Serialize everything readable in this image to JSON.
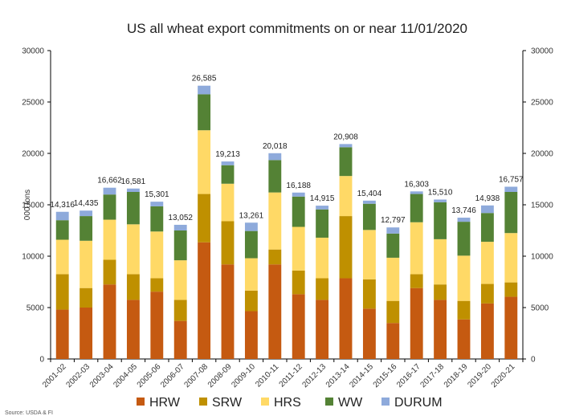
{
  "chart_data": {
    "type": "bar",
    "stacked": true,
    "title": "US all wheat export commitments on or near 11/01/2020",
    "ylabel": "000 tons",
    "xlabel": "",
    "ylim": [
      0,
      30000
    ],
    "yticks": [
      0,
      5000,
      10000,
      15000,
      20000,
      25000,
      30000
    ],
    "secondary_y_axis": true,
    "grid": false,
    "legend_position": "bottom",
    "source": "Source: USDA & FI",
    "categories": [
      "2001-02",
      "2002-03",
      "2003-04",
      "2004-05",
      "2005-06",
      "2006-07",
      "2007-08",
      "2008-09",
      "2009-10",
      "2010-11",
      "2011-12",
      "2012-13",
      "2013-14",
      "2014-15",
      "2015-16",
      "2016-17",
      "2017-18",
      "2018-19",
      "2019-20",
      "2020-21"
    ],
    "totals": [
      14316,
      14435,
      16662,
      16581,
      15301,
      13052,
      26585,
      19213,
      13261,
      20018,
      16188,
      14915,
      20908,
      15404,
      12797,
      16303,
      15510,
      13746,
      14938,
      16757
    ],
    "total_labels": [
      "14,316",
      "14,435",
      "16,662",
      "16,581",
      "15,301",
      "13,052",
      "26,585",
      "19,213",
      "13,261",
      "20,018",
      "16,188",
      "14,915",
      "20,908",
      "15,404",
      "12,797",
      "16,303",
      "15,510",
      "13,746",
      "14,938",
      "16,757"
    ],
    "series": [
      {
        "name": "HRW",
        "color": "#c55a11",
        "values": [
          4800,
          5000,
          7250,
          5750,
          6550,
          3700,
          11350,
          9200,
          4650,
          9200,
          6300,
          5750,
          7850,
          4900,
          3500,
          6900,
          5750,
          3850,
          5400,
          6050
        ]
      },
      {
        "name": "SRW",
        "color": "#bf9000",
        "values": [
          3450,
          1900,
          2400,
          2500,
          1300,
          2050,
          4700,
          4200,
          2000,
          1450,
          2300,
          2100,
          6050,
          2850,
          2150,
          1350,
          1500,
          1800,
          1900,
          1400
        ]
      },
      {
        "name": "HRS",
        "color": "#ffd966",
        "values": [
          3350,
          4600,
          3900,
          4850,
          4550,
          3850,
          6200,
          3650,
          3150,
          5550,
          4250,
          3950,
          3900,
          4800,
          4200,
          5050,
          4400,
          4400,
          4100,
          4800
        ]
      },
      {
        "name": "WW",
        "color": "#548235",
        "values": [
          1900,
          2400,
          2450,
          3150,
          2450,
          2900,
          3500,
          1800,
          2650,
          3150,
          2950,
          2750,
          2800,
          2550,
          2350,
          2750,
          3600,
          3300,
          2800,
          4000
        ]
      },
      {
        "name": "DURUM",
        "color": "#8eaadb",
        "values": [
          816,
          535,
          662,
          331,
          451,
          552,
          835,
          363,
          811,
          668,
          388,
          365,
          308,
          304,
          597,
          253,
          260,
          396,
          738,
          507
        ]
      }
    ]
  }
}
